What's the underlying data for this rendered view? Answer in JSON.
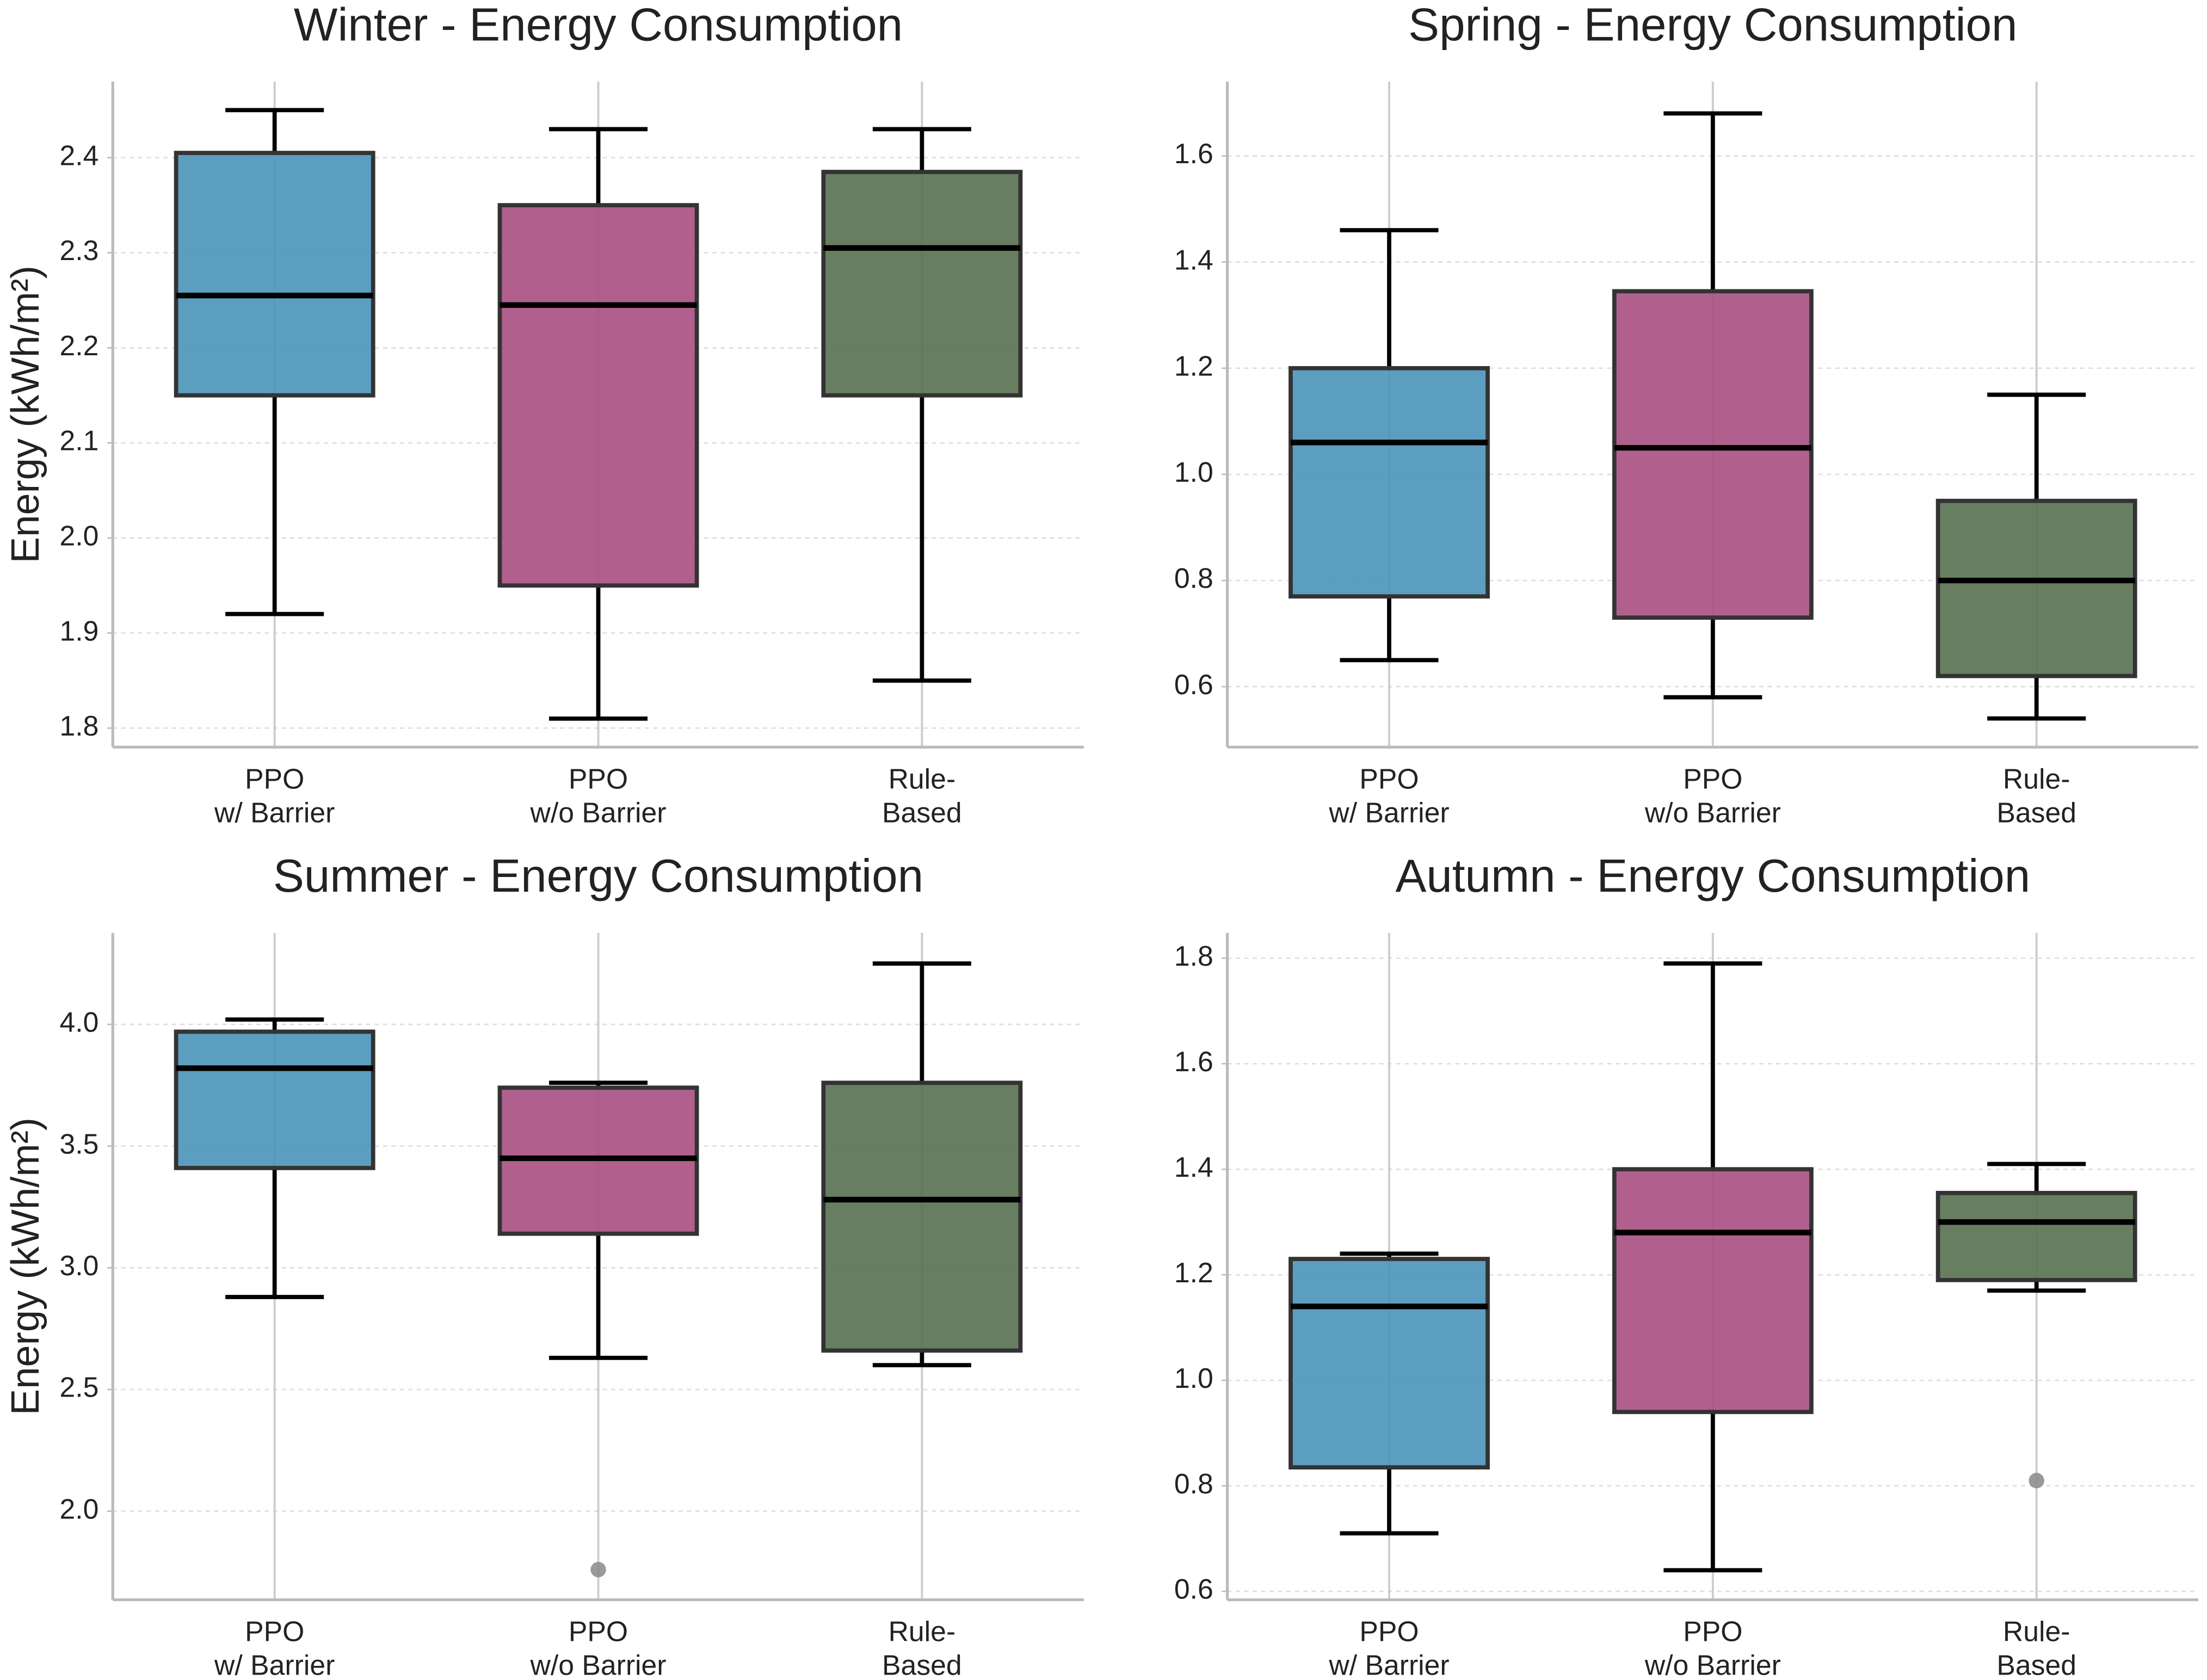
{
  "chart_data": [
    {
      "type": "box",
      "title": "Winter - Energy Consumption",
      "ylabel": "Energy (kWh/m²)",
      "categories": [
        "PPO\nw/ Barrier",
        "PPO\nw/o Barrier",
        "Rule-\nBased"
      ],
      "colors": [
        "#4a94b8",
        "#a94f81",
        "#56704f"
      ],
      "boxes": [
        {
          "whislo": 1.92,
          "q1": 2.15,
          "med": 2.255,
          "q3": 2.405,
          "whishi": 2.45
        },
        {
          "whislo": 1.81,
          "q1": 1.95,
          "med": 2.245,
          "q3": 2.35,
          "whishi": 2.43
        },
        {
          "whislo": 1.85,
          "q1": 2.15,
          "med": 2.305,
          "q3": 2.385,
          "whishi": 2.43
        }
      ],
      "ylim": [
        1.78,
        2.48
      ],
      "yticks": [
        1.8,
        1.9,
        {
          "value": 2.0,
          "label": "2.0"
        },
        2.1,
        2.2,
        2.3,
        2.4
      ],
      "grid": true
    },
    {
      "type": "box",
      "title": "Spring - Energy Consumption",
      "categories": [
        "PPO\nw/ Barrier",
        "PPO\nw/o Barrier",
        "Rule-\nBased"
      ],
      "colors": [
        "#4a94b8",
        "#a94f81",
        "#56704f"
      ],
      "boxes": [
        {
          "whislo": 0.65,
          "q1": 0.77,
          "med": 1.06,
          "q3": 1.2,
          "whishi": 1.46
        },
        {
          "whislo": 0.58,
          "q1": 0.73,
          "med": 1.05,
          "q3": 1.345,
          "whishi": 1.68
        },
        {
          "whislo": 0.54,
          "q1": 0.62,
          "med": 0.8,
          "q3": 0.95,
          "whishi": 1.15
        }
      ],
      "ylim": [
        0.486,
        1.74
      ],
      "yticks": [
        0.6,
        0.8,
        {
          "value": 1.0,
          "label": "1.0"
        },
        1.2,
        1.4,
        1.6
      ],
      "grid": true
    },
    {
      "type": "box",
      "title": "Summer - Energy Consumption",
      "ylabel": "Energy (kWh/m²)",
      "categories": [
        "PPO\nw/ Barrier",
        "PPO\nw/o Barrier",
        "Rule-\nBased"
      ],
      "colors": [
        "#4a94b8",
        "#a94f81",
        "#56704f"
      ],
      "boxes": [
        {
          "whislo": 2.88,
          "q1": 3.41,
          "med": 3.82,
          "q3": 3.97,
          "whishi": 4.02
        },
        {
          "whislo": 2.63,
          "q1": 3.14,
          "med": 3.45,
          "q3": 3.74,
          "whishi": 3.76,
          "fliers": [
            1.76
          ]
        },
        {
          "whislo": 2.6,
          "q1": 2.66,
          "med": 3.28,
          "q3": 3.76,
          "whishi": 4.25
        }
      ],
      "ylim": [
        1.636,
        4.376
      ],
      "yticks": [
        {
          "value": 2.0,
          "label": "2.0"
        },
        2.5,
        {
          "value": 3.0,
          "label": "3.0"
        },
        3.5,
        {
          "value": 4.0,
          "label": "4.0"
        }
      ],
      "grid": true
    },
    {
      "type": "box",
      "title": "Autumn - Energy Consumption",
      "categories": [
        "PPO\nw/ Barrier",
        "PPO\nw/o Barrier",
        "Rule-\nBased"
      ],
      "colors": [
        "#4a94b8",
        "#a94f81",
        "#56704f"
      ],
      "boxes": [
        {
          "whislo": 0.71,
          "q1": 0.835,
          "med": 1.14,
          "q3": 1.23,
          "whishi": 1.24
        },
        {
          "whislo": 0.64,
          "q1": 0.94,
          "med": 1.28,
          "q3": 1.4,
          "whishi": 1.79
        },
        {
          "whislo": 1.17,
          "q1": 1.19,
          "med": 1.3,
          "q3": 1.355,
          "whishi": 1.41,
          "fliers": [
            0.81
          ]
        }
      ],
      "ylim": [
        0.584,
        1.848
      ],
      "yticks": [
        0.6,
        0.8,
        {
          "value": 1.0,
          "label": "1.0"
        },
        1.2,
        1.4,
        1.6,
        1.8
      ],
      "grid": true
    }
  ]
}
